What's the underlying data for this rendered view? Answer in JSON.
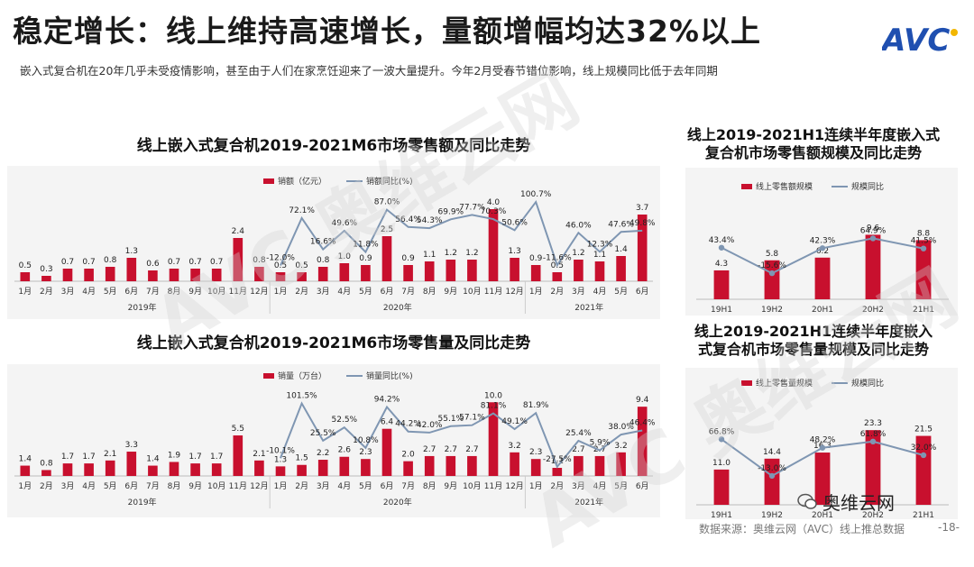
{
  "header": {
    "title": "稳定增长：线上维持高速增长，量额增幅均达32%以上",
    "subtitle": "嵌入式复合机在20年几乎未受疫情影响，甚至由于人们在家烹饪迎来了一波大量提升。今年2月受春节错位影响，线上规模同比低于去年同期",
    "logo_text": "AVC"
  },
  "footer": {
    "source": "数据来源：奥维云网（AVC）线上推总数据",
    "page": "-18-",
    "wechat": "奥维云网"
  },
  "colors": {
    "bar": "#c8102e",
    "line": "#7f96b2"
  },
  "chart_data": [
    {
      "id": "sales_monthly",
      "type": "bar",
      "title": "线上嵌入式复合机2019-2021M6市场零售额及同比走势",
      "legend": [
        "销额（亿元）",
        "销额同比(%)"
      ],
      "categories": [
        "1月",
        "2月",
        "3月",
        "4月",
        "5月",
        "6月",
        "7月",
        "8月",
        "9月",
        "10月",
        "11月",
        "12月",
        "1月",
        "2月",
        "3月",
        "4月",
        "5月",
        "6月",
        "7月",
        "8月",
        "9月",
        "10月",
        "11月",
        "12月",
        "1月",
        "2月",
        "3月",
        "4月",
        "5月",
        "6月"
      ],
      "groups": [
        {
          "label": "2019年",
          "count": 12
        },
        {
          "label": "2020年",
          "count": 12
        },
        {
          "label": "2021年",
          "count": 6
        }
      ],
      "values": [
        0.5,
        0.3,
        0.7,
        0.7,
        0.8,
        1.3,
        0.6,
        0.7,
        0.7,
        0.7,
        2.4,
        0.8,
        0.5,
        0.5,
        0.8,
        1.0,
        0.9,
        2.5,
        0.9,
        1.1,
        1.2,
        1.2,
        4.0,
        1.3,
        0.9,
        0.5,
        1.2,
        1.1,
        1.4,
        3.7
      ],
      "value_labels": [
        "0.5",
        "0.3",
        "0.7",
        "0.7",
        "0.8",
        "1.3",
        "0.6",
        "0.7",
        "0.7",
        "0.7",
        "2.4",
        "0.8",
        "0.5",
        "0.5",
        "0.8",
        "1.0",
        "0.9",
        "2.5",
        "0.9",
        "1.1",
        "1.2",
        "1.2",
        "4.0",
        "1.3",
        "0.9",
        "0.5",
        "1.2",
        "1.1",
        "1.4",
        "3.7"
      ],
      "yoy_start": 12,
      "yoy": [
        -12.0,
        72.1,
        16.6,
        49.6,
        11.8,
        87.0,
        56.4,
        54.3,
        69.9,
        77.7,
        70.3,
        50.6,
        100.7,
        -11.6,
        46.0,
        12.3,
        47.6,
        49.8
      ],
      "yoy_labels": [
        "-12.0%",
        "72.1%",
        "16.6%",
        "49.6%",
        "11.8%",
        "87.0%",
        "56.4%",
        "54.3%",
        "69.9%",
        "77.7%",
        "70.3%",
        "50.6%",
        "100.7%",
        "-11.6%",
        "46.0%",
        "12.3%",
        "47.6%",
        "49.8%"
      ],
      "ylim": [
        0,
        4.5
      ],
      "yoy_lim": [
        -40,
        120
      ]
    },
    {
      "id": "sales_half",
      "type": "bar",
      "title": "线上2019-2021H1连续半年度嵌入式复合机市场零售额规模及同比走势",
      "title_lines": [
        "线上2019-2021H1连续半年度嵌入式",
        "复合机市场零售额规模及同比走势"
      ],
      "legend": [
        "线上零售额规模",
        "规模同比"
      ],
      "categories": [
        "19H1",
        "19H2",
        "20H1",
        "20H2",
        "21H1"
      ],
      "values": [
        4.3,
        5.8,
        6.2,
        9.6,
        8.8
      ],
      "value_labels": [
        "4.3",
        "5.8",
        "6.2",
        "9.6",
        "8.8"
      ],
      "yoy": [
        43.4,
        -15.6,
        42.3,
        64.9,
        41.5
      ],
      "yoy_labels": [
        "43.4%",
        "-15.6%",
        "42.3%",
        "64.9%",
        "41.5%"
      ],
      "ylim": [
        0,
        11
      ],
      "yoy_lim": [
        -80,
        120
      ]
    },
    {
      "id": "volume_monthly",
      "type": "bar",
      "title": "线上嵌入式复合机2019-2021M6市场零售量及同比走势",
      "legend": [
        "销量（万台）",
        "销量同比(%)"
      ],
      "categories": [
        "1月",
        "2月",
        "3月",
        "4月",
        "5月",
        "6月",
        "7月",
        "8月",
        "9月",
        "10月",
        "11月",
        "12月",
        "1月",
        "2月",
        "3月",
        "4月",
        "5月",
        "6月",
        "7月",
        "8月",
        "9月",
        "10月",
        "11月",
        "12月",
        "1月",
        "2月",
        "3月",
        "4月",
        "5月",
        "6月"
      ],
      "groups": [
        {
          "label": "2019年",
          "count": 12
        },
        {
          "label": "2020年",
          "count": 12
        },
        {
          "label": "2021年",
          "count": 6
        }
      ],
      "values": [
        1.4,
        0.8,
        1.7,
        1.7,
        2.1,
        3.3,
        1.4,
        1.9,
        1.7,
        1.7,
        5.5,
        2.1,
        1.3,
        1.5,
        2.2,
        2.6,
        2.3,
        6.4,
        2.0,
        2.7,
        2.7,
        2.7,
        10.0,
        3.2,
        2.3,
        1.1,
        2.7,
        2.7,
        3.2,
        9.4
      ],
      "value_labels": [
        "1.4",
        "0.8",
        "1.7",
        "1.7",
        "2.1",
        "3.3",
        "1.4",
        "1.9",
        "1.7",
        "1.7",
        "5.5",
        "2.1",
        "1.3",
        "1.5",
        "2.2",
        "2.6",
        "2.3",
        "6.4",
        "2.0",
        "2.7",
        "2.7",
        "2.7",
        "10.0",
        "3.2",
        "2.3",
        "1.1",
        "2.7",
        "2.7",
        "3.2",
        "9.4"
      ],
      "yoy_start": 12,
      "yoy": [
        -10.1,
        101.5,
        25.5,
        52.5,
        10.8,
        94.2,
        44.2,
        42.0,
        55.1,
        57.1,
        81.1,
        49.1,
        81.9,
        -27.5,
        25.4,
        5.9,
        38.0,
        46.4
      ],
      "yoy_labels": [
        "-10.1%",
        "101.5%",
        "25.5%",
        "52.5%",
        "10.8%",
        "94.2%",
        "44.2%",
        "42.0%",
        "55.1%",
        "57.1%",
        "81.1%",
        "49.1%",
        "81.9%",
        "-27.5%",
        "25.4%",
        "5.9%",
        "38.0%",
        "46.4%"
      ],
      "ylim": [
        0,
        11.5
      ],
      "yoy_lim": [
        -50,
        130
      ]
    },
    {
      "id": "volume_half",
      "type": "bar",
      "title": "线上2019-2021H1连续半年度嵌入式复合机市场零售量规模及同比走势",
      "title_lines": [
        "线上2019-2021H1连续半年度嵌入",
        "式复合机市场零售量规模及同比走势"
      ],
      "legend": [
        "线上零售量规模",
        "规模同比"
      ],
      "categories": [
        "19H1",
        "19H2",
        "20H1",
        "20H2",
        "21H1"
      ],
      "values": [
        11.0,
        14.4,
        16.3,
        23.3,
        21.5
      ],
      "value_labels": [
        "11.0",
        "14.4",
        "16.3",
        "23.3",
        "21.5"
      ],
      "yoy": [
        66.8,
        -13.0,
        48.2,
        61.8,
        32.0
      ],
      "yoy_labels": [
        "66.8%",
        "-13.0%",
        "48.2%",
        "61.8%",
        "32.0%"
      ],
      "ylim": [
        0,
        27
      ],
      "yoy_lim": [
        -80,
        140
      ]
    }
  ]
}
